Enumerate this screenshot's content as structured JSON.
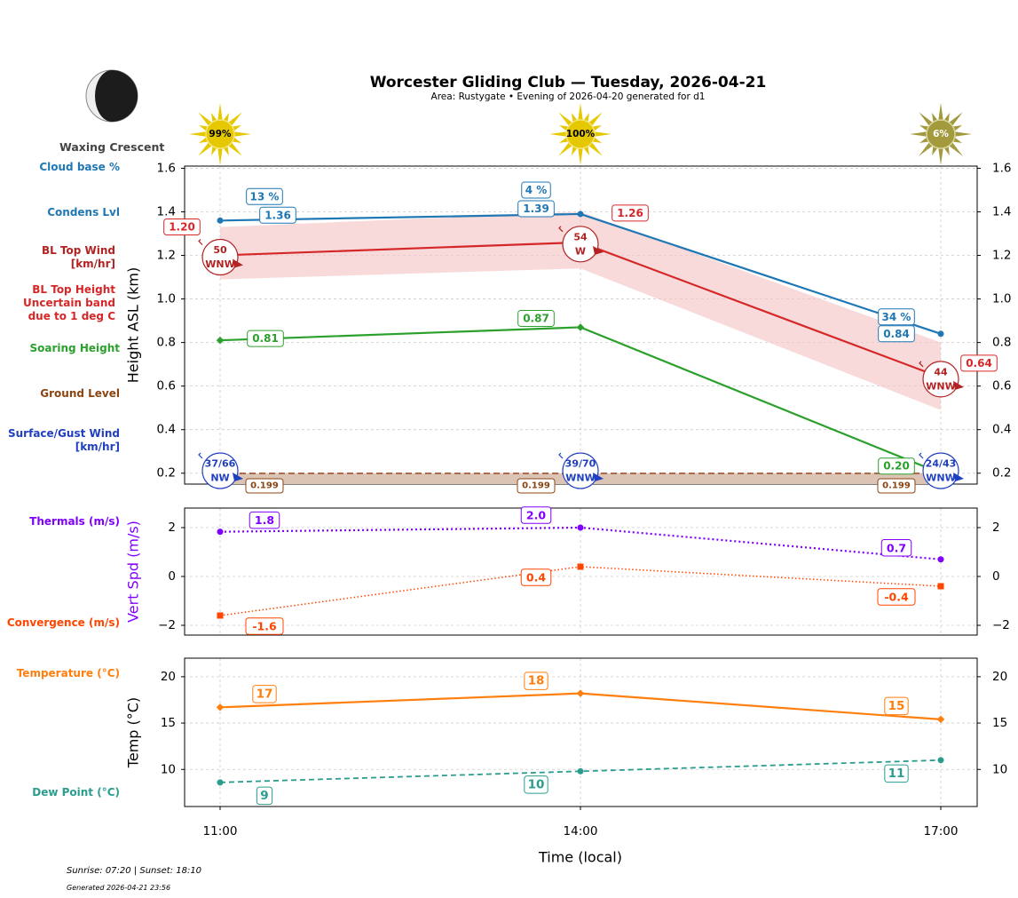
{
  "header": {
    "title": "Worcester Gliding Club — Tuesday, 2026-04-21",
    "subtitle": "Area: Rustygate • Evening of 2026-04-20 generated for d1",
    "moon_phase": "Waxing Crescent",
    "moon_icon": "waxing-crescent-moon-icon"
  },
  "side_labels": [
    {
      "text": "Cloud base %",
      "color": "#1f77b4"
    },
    {
      "text": "Condens Lvl",
      "color": "#1f77b4"
    },
    {
      "text": "BL Top Wind\n[km/hr]",
      "color": "#b22222"
    },
    {
      "text": "BL Top Height\nUncertain band\ndue to 1 deg C",
      "color": "#d62728"
    },
    {
      "text": "Soaring Height",
      "color": "#2ca02c"
    },
    {
      "text": "Ground Level",
      "color": "#8b4513"
    },
    {
      "text": "Surface/Gust Wind\n[km/hr]",
      "color": "#1f3fbf"
    },
    {
      "text": "Thermals (m/s)",
      "color": "#8000ff"
    },
    {
      "text": "Convergence (m/s)",
      "color": "#ff4500"
    },
    {
      "text": "Temperature (°C)",
      "color": "#ff7f0e"
    },
    {
      "text": "Dew Point (°C)",
      "color": "#2a9d8f"
    }
  ],
  "footer": {
    "sun": "Sunrise: 07:20 | Sunset: 18:10",
    "generated": "Generated 2026-04-21 23:56"
  },
  "chart_data": [
    {
      "type": "line",
      "panel": "height",
      "ylabel": "Height ASL (km)",
      "ylim": [
        0.15,
        1.61
      ],
      "yticks": [
        "0.2",
        "0.4",
        "0.6",
        "0.8",
        "1.0",
        "1.2",
        "1.4",
        "1.6"
      ],
      "x": [
        "11:00",
        "14:00",
        "17:00"
      ],
      "grid": true,
      "sun_percent": [
        "99%",
        "100%",
        "6%"
      ],
      "series": [
        {
          "name": "Condens Lvl",
          "color": "#1f77b4",
          "values": [
            1.36,
            1.39,
            0.84
          ],
          "labels": [
            "1.36",
            "1.39",
            "0.84"
          ],
          "cloud_base_pct": [
            "13 %",
            "4 %",
            "34 %"
          ]
        },
        {
          "name": "BL Top Height",
          "color": "#d62728",
          "values": [
            1.2,
            1.26,
            0.64
          ],
          "labels": [
            "1.20",
            "1.26",
            "0.64"
          ],
          "band_low": [
            1.09,
            1.14,
            0.49
          ],
          "band_high": [
            1.33,
            1.4,
            0.8
          ]
        },
        {
          "name": "BL Top Wind",
          "color": "#b22222",
          "speed": [
            "50",
            "54",
            "44"
          ],
          "direction": [
            "WNW",
            "W",
            "WNW"
          ]
        },
        {
          "name": "Soaring Height",
          "color": "#2ca02c",
          "values": [
            0.81,
            0.87,
            0.2
          ],
          "labels": [
            "0.81",
            "0.87",
            "0.20"
          ]
        },
        {
          "name": "Ground Level",
          "color": "#a0522d",
          "values": [
            0.199,
            0.199,
            0.199
          ],
          "labels": [
            "0.199",
            "0.199",
            "0.199"
          ]
        },
        {
          "name": "Surface/Gust Wind",
          "color": "#1f3fbf",
          "speed": [
            "37/66",
            "39/70",
            "24/43"
          ],
          "direction": [
            "NW",
            "WNW",
            "WNW"
          ]
        }
      ]
    },
    {
      "type": "line",
      "panel": "vertical-speed",
      "ylabel": "Vert Spd (m/s)",
      "ylim": [
        -2.4,
        2.8
      ],
      "yticks": [
        "−2",
        "0",
        "2"
      ],
      "x": [
        "11:00",
        "14:00",
        "17:00"
      ],
      "grid": true,
      "series": [
        {
          "name": "Thermals (m/s)",
          "color": "#8000ff",
          "values": [
            1.83,
            2.0,
            0.7
          ],
          "labels": [
            "1.8",
            "2.0",
            "0.7"
          ]
        },
        {
          "name": "Convergence (m/s)",
          "color": "#ff4500",
          "values": [
            -1.6,
            0.4,
            -0.4
          ],
          "labels": [
            "-1.6",
            "0.4",
            "-0.4"
          ]
        }
      ]
    },
    {
      "type": "line",
      "panel": "temperature",
      "ylabel": "Temp (°C)",
      "xlabel": "Time (local)",
      "ylim": [
        6,
        22
      ],
      "yticks": [
        "10",
        "15",
        "20"
      ],
      "x": [
        "11:00",
        "14:00",
        "17:00"
      ],
      "grid": true,
      "series": [
        {
          "name": "Temperature (°C)",
          "color": "#ff7f0e",
          "values": [
            16.7,
            18.2,
            15.4
          ],
          "labels": [
            "17",
            "18",
            "15"
          ]
        },
        {
          "name": "Dew Point (°C)",
          "color": "#2a9d8f",
          "values": [
            8.6,
            9.8,
            11.0
          ],
          "labels": [
            "9",
            "10",
            "11"
          ]
        }
      ]
    }
  ]
}
